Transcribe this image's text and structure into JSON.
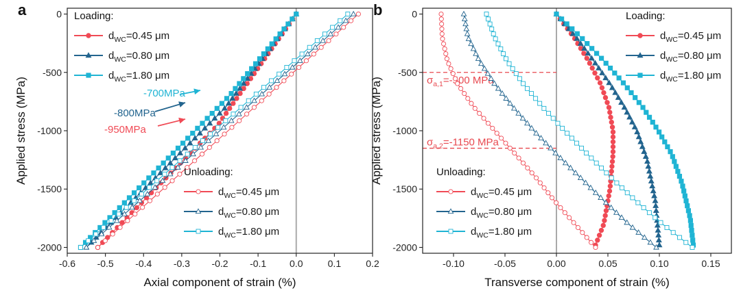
{
  "colors": {
    "dwc045": "#f04a55",
    "dwc080": "#22648e",
    "dwc180": "#1fb4d4",
    "zero_line": "#aaaaaa",
    "guide": "#e8484f"
  },
  "chart_data": [
    {
      "id": "a",
      "type": "line",
      "panel_label": "a",
      "xlabel": "Axial component of strain (%)",
      "ylabel": "Applied stress (MPa)",
      "xlim": [
        -0.6,
        0.2
      ],
      "ylim": [
        -2050,
        50
      ],
      "xticks": [
        -0.6,
        -0.5,
        -0.4,
        -0.3,
        -0.2,
        -0.1,
        0.0,
        0.1,
        0.2
      ],
      "xtick_labels": [
        "-0.6",
        "-0.5",
        "-0.4",
        "-0.3",
        "-0.2",
        "-0.1",
        "0.0",
        "0.1",
        "0.2"
      ],
      "yticks": [
        0,
        -500,
        -1000,
        -1500,
        -2000
      ],
      "ytick_labels": [
        "0",
        "-500",
        "-1000",
        "-1500",
        "-2000"
      ],
      "vline_x": 0,
      "legend_loading": {
        "title": "Loading:",
        "position": "top-left",
        "items": [
          "0.45 μm",
          "0.80 μm",
          "1.80 μm"
        ]
      },
      "legend_unloading": {
        "title": "Unloading:",
        "position": "bottom-right",
        "items": [
          "0.45 μm",
          "0.80 μm",
          "1.80 μm"
        ]
      },
      "legend_prefix": "d",
      "legend_sub": "WC",
      "annotations": [
        {
          "text": "-700MPa",
          "color": "#1fb4d4"
        },
        {
          "text": "-800MPa",
          "color": "#22648e"
        },
        {
          "text": "-950MPa",
          "color": "#f04a55"
        }
      ],
      "series": [
        {
          "name": "dWC=0.45 μm loading",
          "color": "#f04a55",
          "marker": "circle",
          "filled": true,
          "x": [
            0.0,
            -0.205,
            -0.52
          ],
          "y": [
            0,
            -950,
            -2000
          ]
        },
        {
          "name": "dWC=0.80 μm loading",
          "color": "#22648e",
          "marker": "triangle",
          "filled": true,
          "x": [
            0.0,
            -0.185,
            -0.55
          ],
          "y": [
            0,
            -800,
            -2000
          ]
        },
        {
          "name": "dWC=1.80 μm loading",
          "color": "#1fb4d4",
          "marker": "square",
          "filled": true,
          "x": [
            0.0,
            -0.175,
            -0.565
          ],
          "y": [
            0,
            -700,
            -2000
          ]
        },
        {
          "name": "dWC=0.45 μm unloading",
          "color": "#f04a55",
          "marker": "circle",
          "filled": false,
          "x": [
            -0.52,
            0.163
          ],
          "y": [
            -2000,
            0
          ]
        },
        {
          "name": "dWC=0.80 μm unloading",
          "color": "#22648e",
          "marker": "triangle",
          "filled": false,
          "x": [
            -0.55,
            0.15
          ],
          "y": [
            -2000,
            0
          ]
        },
        {
          "name": "dWC=1.80 μm unloading",
          "color": "#1fb4d4",
          "marker": "square",
          "filled": false,
          "x": [
            -0.565,
            0.135
          ],
          "y": [
            -2000,
            0
          ]
        }
      ]
    },
    {
      "id": "b",
      "type": "line",
      "panel_label": "b",
      "xlabel": "Transverse component of strain (%)",
      "ylabel": "Applied stress (MPa)",
      "xlim": [
        -0.13,
        0.17
      ],
      "ylim": [
        -2050,
        50
      ],
      "xticks": [
        -0.1,
        -0.05,
        0.0,
        0.05,
        0.1,
        0.15
      ],
      "xtick_labels": [
        "-0.10",
        "-0.05",
        "0.00",
        "0.05",
        "0.10",
        "0.15"
      ],
      "yticks": [
        0,
        -500,
        -1000,
        -1500,
        -2000
      ],
      "ytick_labels": [
        "0",
        "-500",
        "-1000",
        "-1500",
        "-2000"
      ],
      "vline_x": 0,
      "legend_loading": {
        "title": "Loading:",
        "position": "top-right",
        "items": [
          "0.45 μm",
          "0.80 μm",
          "1.80 μm"
        ]
      },
      "legend_unloading": {
        "title": "Unloading:",
        "position": "bottom-left",
        "items": [
          "0.45 μm",
          "0.80 μm",
          "1.80 μm"
        ]
      },
      "legend_prefix": "d",
      "legend_sub": "WC",
      "hlines": [
        {
          "y": -500,
          "label_main": "σ",
          "label_sub": "a,1",
          "label_rest": "=-500 MPa"
        },
        {
          "y": -1150,
          "label_main": "σ",
          "label_sub": "a,2",
          "label_rest": "=-1150 MPa"
        }
      ],
      "series": [
        {
          "name": "dWC=0.45 μm loading",
          "color": "#f04a55",
          "marker": "circle",
          "filled": true,
          "x": [
            0.0,
            0.017,
            0.031,
            0.043,
            0.051,
            0.055,
            0.055,
            0.052,
            0.046,
            0.038
          ],
          "y": [
            0,
            -200,
            -400,
            -600,
            -800,
            -1000,
            -1200,
            -1500,
            -1800,
            -1980
          ]
        },
        {
          "name": "dWC=0.80 μm loading",
          "color": "#22648e",
          "marker": "triangle",
          "filled": true,
          "x": [
            0.0,
            0.019,
            0.036,
            0.052,
            0.066,
            0.078,
            0.088,
            0.096,
            0.1
          ],
          "y": [
            0,
            -200,
            -400,
            -600,
            -800,
            -1000,
            -1250,
            -1600,
            -1980
          ]
        },
        {
          "name": "dWC=1.80 μm loading",
          "color": "#1fb4d4",
          "marker": "square",
          "filled": true,
          "x": [
            0.0,
            0.024,
            0.046,
            0.066,
            0.084,
            0.099,
            0.112,
            0.122,
            0.13,
            0.133
          ],
          "y": [
            0,
            -200,
            -400,
            -600,
            -800,
            -1000,
            -1200,
            -1450,
            -1750,
            -1980
          ]
        },
        {
          "name": "dWC=0.45 μm unloading",
          "color": "#f04a55",
          "marker": "circle",
          "filled": false,
          "x": [
            0.038,
            0.018,
            -0.002,
            -0.02,
            -0.04,
            -0.06,
            -0.08,
            -0.096,
            -0.106,
            -0.111,
            -0.112
          ],
          "y": [
            -2000,
            -1800,
            -1600,
            -1400,
            -1200,
            -1000,
            -800,
            -600,
            -400,
            -200,
            0
          ]
        },
        {
          "name": "dWC=0.80 μm unloading",
          "color": "#22648e",
          "marker": "triangle",
          "filled": false,
          "x": [
            0.097,
            0.07,
            0.046,
            0.023,
            0.0,
            -0.022,
            -0.042,
            -0.06,
            -0.075,
            -0.086,
            -0.09
          ],
          "y": [
            -2000,
            -1800,
            -1600,
            -1400,
            -1200,
            -1000,
            -800,
            -600,
            -400,
            -200,
            0
          ]
        },
        {
          "name": "dWC=1.80 μm unloading",
          "color": "#1fb4d4",
          "marker": "square",
          "filled": false,
          "x": [
            0.132,
            0.103,
            0.077,
            0.053,
            0.03,
            0.008,
            -0.013,
            -0.032,
            -0.048,
            -0.06,
            -0.066,
            -0.068
          ],
          "y": [
            -2000,
            -1800,
            -1600,
            -1400,
            -1200,
            -1000,
            -800,
            -600,
            -400,
            -200,
            -50,
            0
          ]
        }
      ]
    }
  ]
}
